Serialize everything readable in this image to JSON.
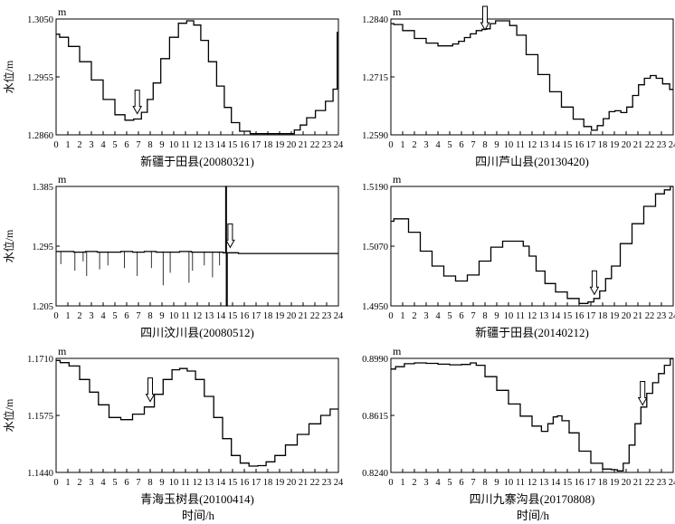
{
  "figure": {
    "common_xlabel": "时间/h",
    "xtick_labels": [
      "0",
      "1",
      "2",
      "3",
      "4",
      "5",
      "6",
      "7",
      "8",
      "9",
      "10",
      "11",
      "12",
      "13",
      "14",
      "15",
      "16",
      "17",
      "18",
      "19",
      "20",
      "21",
      "22",
      "23",
      "24"
    ]
  },
  "chart_data": [
    {
      "type": "line",
      "caption": "新疆于田县(20080321)",
      "ylabel": "水位/m",
      "unit_label": "m",
      "xlim": [
        0,
        24
      ],
      "ylim": [
        1.286,
        1.305
      ],
      "yticks": [
        "1.2860",
        "1.2955",
        "1.3050"
      ],
      "arrow_at": 6.9,
      "series": [
        {
          "x": [
            0,
            0.6,
            1.5,
            2.5,
            3.5,
            4.5,
            5.5,
            6.2,
            7.0,
            7.5,
            8.0,
            8.5,
            9.3,
            10.0,
            10.8,
            11.4,
            12.0,
            12.6,
            13.3,
            14.0,
            14.6,
            15.2,
            16.0,
            17.0,
            18.0,
            19.0,
            20.0,
            20.5,
            21.0,
            21.6,
            22.5,
            23.3,
            23.8,
            24.0
          ],
          "y": [
            1.3025,
            1.302,
            1.3005,
            1.298,
            1.295,
            1.2918,
            1.2893,
            1.2884,
            1.2886,
            1.2897,
            1.2918,
            1.2945,
            1.2985,
            1.302,
            1.3043,
            1.3047,
            1.304,
            1.3015,
            1.298,
            1.294,
            1.2905,
            1.288,
            1.2866,
            1.2862,
            1.2862,
            1.2862,
            1.2862,
            1.2868,
            1.2876,
            1.2888,
            1.29,
            1.2915,
            1.2935,
            1.3028
          ]
        }
      ]
    },
    {
      "type": "line",
      "caption": "四川芦山县(20130420)",
      "ylabel": "",
      "unit_label": "m",
      "xlim": [
        0,
        24
      ],
      "ylim": [
        1.259,
        1.284
      ],
      "yticks": [
        "1.2590",
        "1.2715",
        "1.2840"
      ],
      "arrow_at": 8.0,
      "series": [
        {
          "x": [
            0,
            0.5,
            1.5,
            2.5,
            3.5,
            4.5,
            5.0,
            5.5,
            6.0,
            6.5,
            7.0,
            7.5,
            8.0,
            8.3,
            8.6,
            9.2,
            9.8,
            10.4,
            11.0,
            12.0,
            13.0,
            14.0,
            15.0,
            16.0,
            16.8,
            17.3,
            17.8,
            18.3,
            18.8,
            19.3,
            19.8,
            20.3,
            20.8,
            21.3,
            21.8,
            22.3,
            22.8,
            23.4,
            24.0
          ],
          "y": [
            1.283,
            1.2828,
            1.2815,
            1.2798,
            1.2788,
            1.2782,
            1.2782,
            1.2786,
            1.2792,
            1.28,
            1.2808,
            1.2815,
            1.2818,
            1.2819,
            1.283,
            1.2836,
            1.2836,
            1.2826,
            1.2805,
            1.2763,
            1.272,
            1.2683,
            1.265,
            1.2624,
            1.2608,
            1.26,
            1.261,
            1.2625,
            1.264,
            1.2642,
            1.2638,
            1.265,
            1.2675,
            1.2698,
            1.2712,
            1.2718,
            1.2712,
            1.27,
            1.2688
          ]
        }
      ]
    },
    {
      "type": "line",
      "caption": "四川汶川县(20080512)",
      "ylabel": "水位/m",
      "unit_label": "m",
      "xlim": [
        0,
        24
      ],
      "ylim": [
        1.205,
        1.385
      ],
      "yticks": [
        "1.205",
        "1.295",
        "1.385"
      ],
      "arrow_at": 14.8,
      "series": [
        {
          "x": [
            0,
            1,
            2,
            3,
            4,
            5,
            6,
            7,
            8,
            9,
            10,
            11,
            12,
            13,
            14,
            14.4,
            14.45,
            14.5,
            14.6,
            15.0,
            16,
            17,
            18,
            19,
            20,
            21,
            22,
            23,
            24
          ],
          "y": [
            1.287,
            1.287,
            1.286,
            1.287,
            1.286,
            1.286,
            1.287,
            1.286,
            1.287,
            1.286,
            1.286,
            1.287,
            1.286,
            1.286,
            1.286,
            1.285,
            1.385,
            1.205,
            1.285,
            1.285,
            1.284,
            1.284,
            1.284,
            1.284,
            1.284,
            1.284,
            1.284,
            1.284,
            1.284
          ]
        }
      ],
      "spikes": {
        "x": [
          0.4,
          1.6,
          2.3,
          2.6,
          3.7,
          4.4,
          5.8,
          6.9,
          8.1,
          9.1,
          9.7,
          11.3,
          11.6,
          12.6,
          13.3,
          13.9
        ],
        "y": [
          1.268,
          1.258,
          1.272,
          1.25,
          1.26,
          1.266,
          1.262,
          1.25,
          1.262,
          1.236,
          1.255,
          1.24,
          1.258,
          1.266,
          1.248,
          1.266
        ]
      }
    },
    {
      "type": "line",
      "caption": "新疆于田县(20140212)",
      "ylabel": "",
      "unit_label": "m",
      "xlim": [
        0,
        24
      ],
      "ylim": [
        1.495,
        1.519
      ],
      "yticks": [
        "1.4950",
        "1.5070",
        "1.5190"
      ],
      "arrow_at": 17.3,
      "series": [
        {
          "x": [
            0,
            0.5,
            1.0,
            2.0,
            3.0,
            4.0,
            5.0,
            6.0,
            7.0,
            8.0,
            9.0,
            10.0,
            11.0,
            11.5,
            12.0,
            12.7,
            13.5,
            14.5,
            15.5,
            16.5,
            17.0,
            17.5,
            18.0,
            18.5,
            19.0,
            20.0,
            21.0,
            22.0,
            23.0,
            23.5,
            24.0
          ],
          "y": [
            1.512,
            1.5125,
            1.5125,
            1.5098,
            1.506,
            1.503,
            1.501,
            1.5,
            1.5012,
            1.504,
            1.5068,
            1.508,
            1.508,
            1.507,
            1.505,
            1.502,
            1.4995,
            1.4978,
            1.4965,
            1.4955,
            1.4958,
            1.4965,
            1.498,
            1.5005,
            1.503,
            1.5075,
            1.5115,
            1.515,
            1.5175,
            1.5183,
            1.519
          ]
        }
      ]
    },
    {
      "type": "line",
      "caption": "青海玉树县(20100414)",
      "ylabel": "水位/m",
      "unit_label": "m",
      "xlim": [
        0,
        24
      ],
      "ylim": [
        1.144,
        1.171
      ],
      "yticks": [
        "1.1440",
        "1.1575",
        "1.1710"
      ],
      "arrow_at": 8.0,
      "series": [
        {
          "x": [
            0,
            0.7,
            1.5,
            2.5,
            3.2,
            4.0,
            5.0,
            6.0,
            7.0,
            8.0,
            8.7,
            9.5,
            10.2,
            10.8,
            11.5,
            12.2,
            13.0,
            13.8,
            14.5,
            15.3,
            16.0,
            16.8,
            17.5,
            18.2,
            19.0,
            20.0,
            21.0,
            22.0,
            23.0,
            23.6,
            24.0
          ],
          "y": [
            1.1705,
            1.17,
            1.1692,
            1.166,
            1.163,
            1.16,
            1.157,
            1.1565,
            1.1578,
            1.1595,
            1.1625,
            1.166,
            1.1683,
            1.1686,
            1.168,
            1.166,
            1.162,
            1.157,
            1.152,
            1.148,
            1.1462,
            1.1455,
            1.1456,
            1.1465,
            1.148,
            1.1505,
            1.153,
            1.1555,
            1.1575,
            1.159,
            1.159
          ]
        }
      ]
    },
    {
      "type": "line",
      "caption": "四川九寨沟县(20170808)",
      "ylabel": "",
      "unit_label": "m",
      "xlim": [
        0,
        24
      ],
      "ylim": [
        0.824,
        0.899
      ],
      "yticks": [
        "0.8240",
        "0.8615",
        "0.8990"
      ],
      "arrow_at": 21.4,
      "series": [
        {
          "x": [
            0,
            0.8,
            1.5,
            2.5,
            3.5,
            4.5,
            5.5,
            6.5,
            7.0,
            7.5,
            8.5,
            9.5,
            10.5,
            11.5,
            12.5,
            13.1,
            13.6,
            14.0,
            14.3,
            14.8,
            15.5,
            16.5,
            17.5,
            18.5,
            19.0,
            19.5,
            20.0,
            20.5,
            21.0,
            21.5,
            22.0,
            22.5,
            23.0,
            23.5,
            24.0
          ],
          "y": [
            0.892,
            0.8935,
            0.8955,
            0.896,
            0.8957,
            0.8952,
            0.8948,
            0.895,
            0.896,
            0.8945,
            0.887,
            0.878,
            0.869,
            0.861,
            0.8545,
            0.851,
            0.856,
            0.8605,
            0.8612,
            0.858,
            0.85,
            0.838,
            0.83,
            0.8262,
            0.8258,
            0.825,
            0.83,
            0.842,
            0.856,
            0.867,
            0.876,
            0.883,
            0.889,
            0.8945,
            0.8988
          ]
        }
      ]
    }
  ]
}
